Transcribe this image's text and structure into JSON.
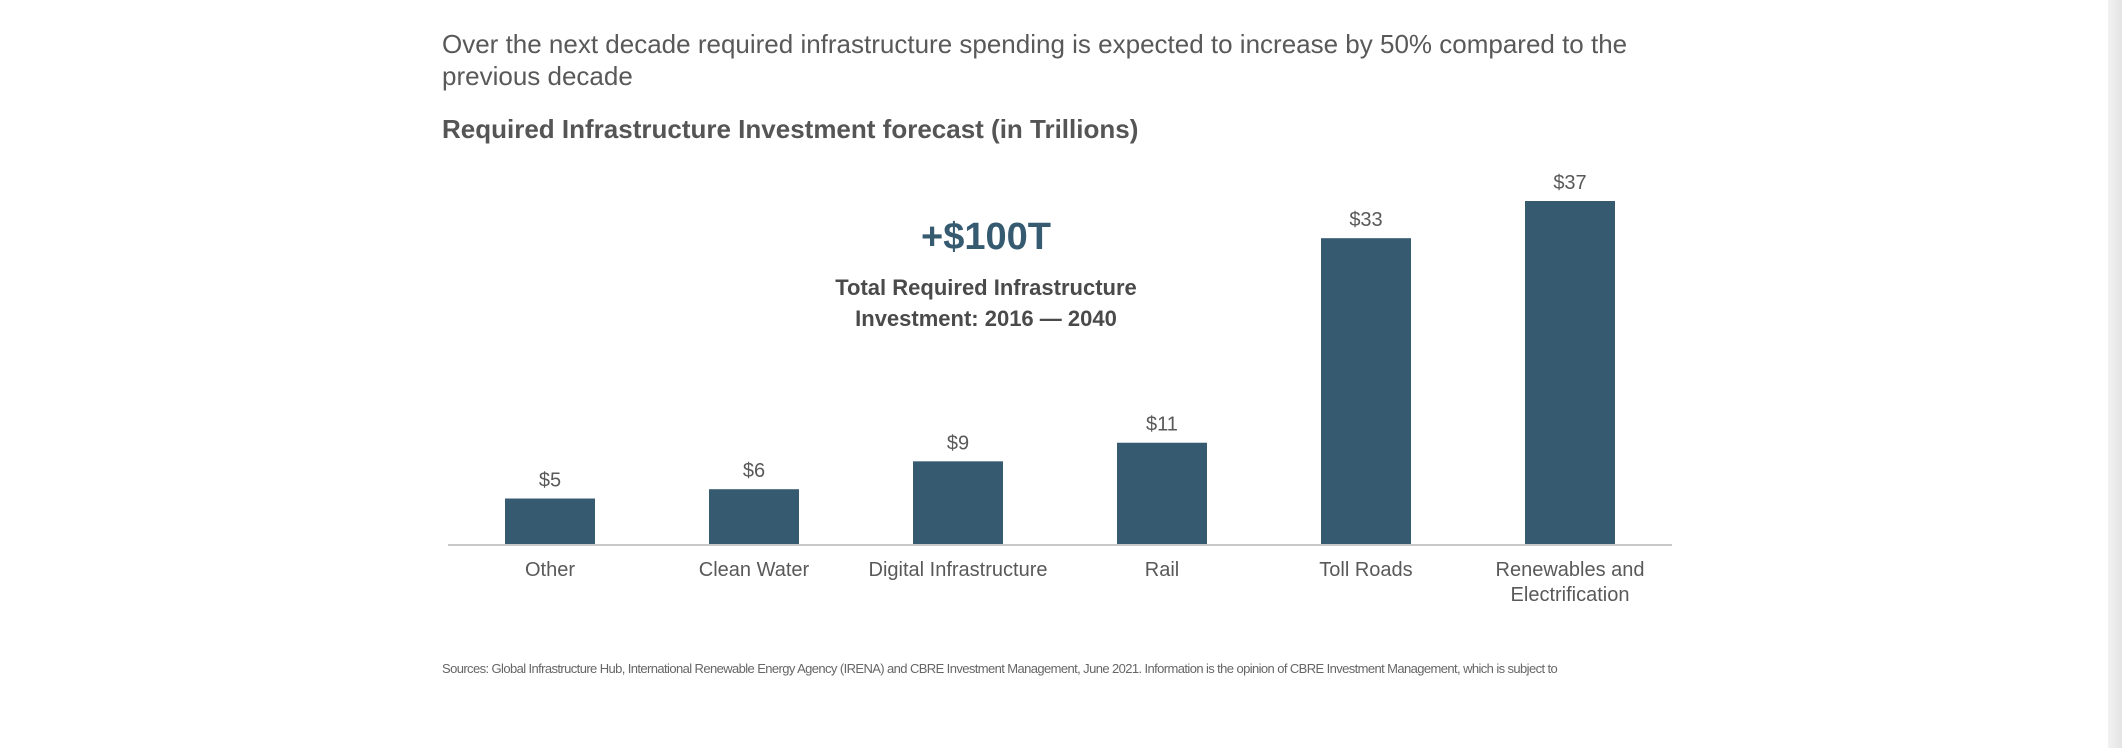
{
  "headline": "Over the next decade required infrastructure spending is expected to increase by 50% compared to the previous decade",
  "chart_data": {
    "type": "bar",
    "title": "Required Infrastructure Investment forecast (in Trillions)",
    "categories": [
      "Other",
      "Clean Water",
      "Digital Infrastructure",
      "Rail",
      "Toll Roads",
      "Renewables and Electrification"
    ],
    "values": [
      5,
      6,
      9,
      11,
      33,
      37
    ],
    "value_labels": [
      "$5",
      "$6",
      "$9",
      "$11",
      "$33",
      "$37"
    ],
    "bar_color": "#365a70",
    "ylim": [
      0,
      37
    ],
    "grid": false,
    "annotation": {
      "value": "+$100T",
      "caption": "Total Required Infrastructure Investment: 2016 — 2040"
    }
  },
  "sources": "Sources: Global Infrastructure Hub, International Renewable Energy Agency (IRENA) and CBRE Investment Management, June 2021. Information is the opinion of CBRE Investment Management, which is subject to"
}
